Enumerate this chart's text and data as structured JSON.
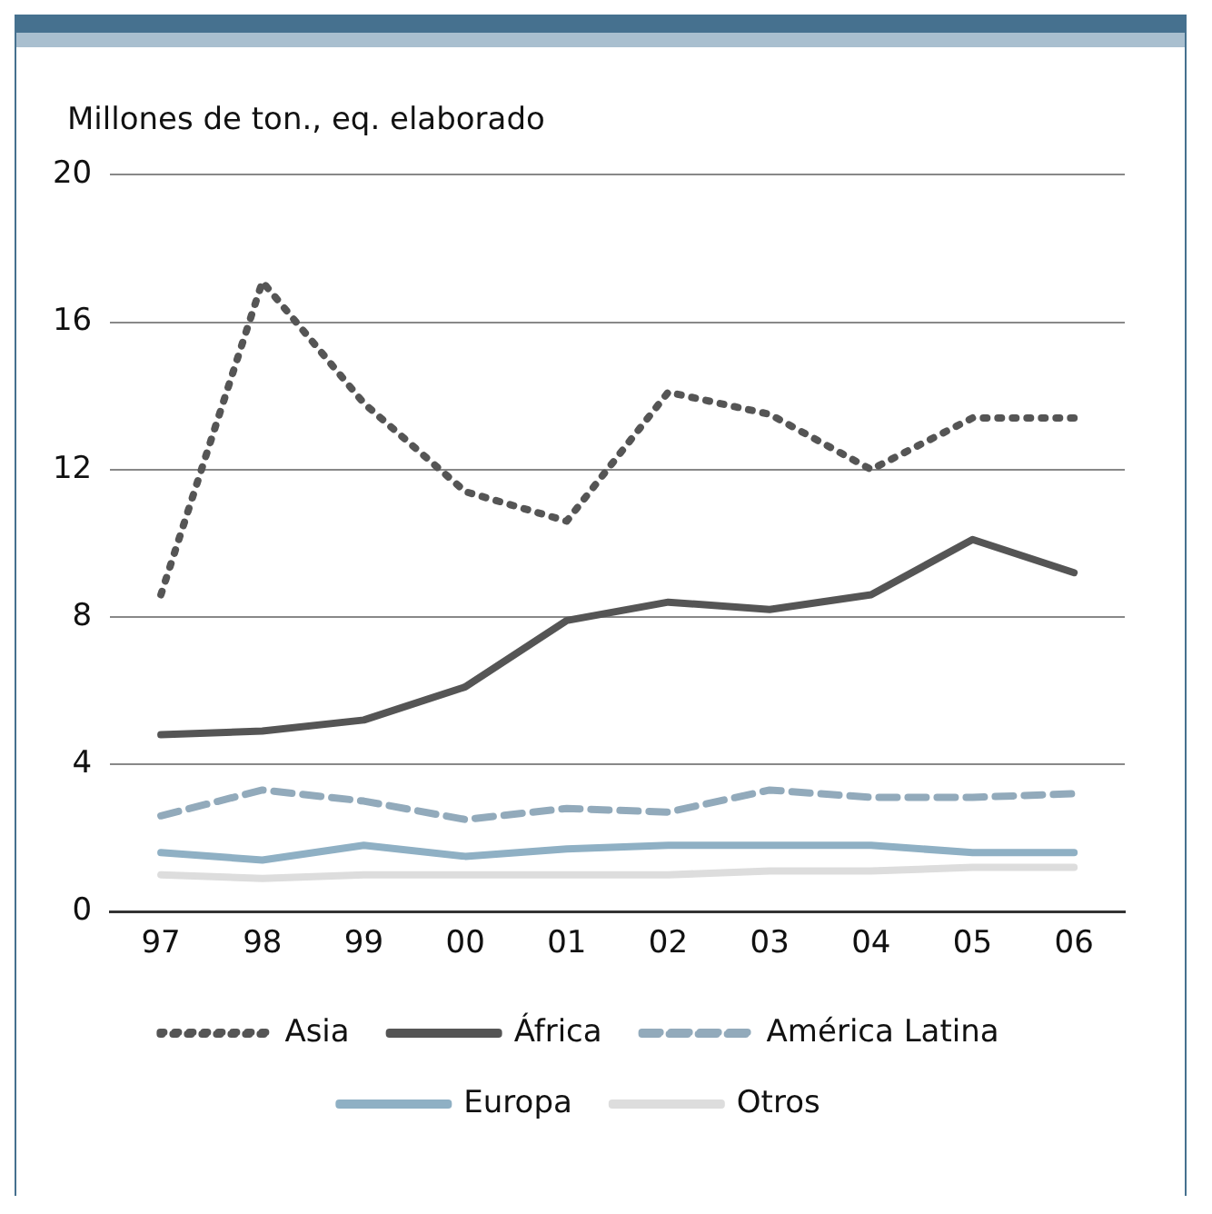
{
  "chart_data": {
    "type": "line",
    "ylabel": "Millones de ton., eq. elaborado",
    "categories": [
      "97",
      "98",
      "99",
      "00",
      "01",
      "02",
      "03",
      "04",
      "05",
      "06"
    ],
    "series": [
      {
        "name": "Asia",
        "color": "#555555",
        "line_style": "dotted",
        "values": [
          8.6,
          17.1,
          13.8,
          11.4,
          10.6,
          14.1,
          13.5,
          12.0,
          13.4,
          13.4
        ]
      },
      {
        "name": "África",
        "color": "#555555",
        "line_style": "solid",
        "values": [
          4.8,
          4.9,
          5.2,
          6.1,
          7.9,
          8.4,
          8.2,
          8.6,
          10.1,
          9.2
        ]
      },
      {
        "name": "América Latina",
        "color": "#92aabb",
        "line_style": "dashed",
        "values": [
          2.6,
          3.3,
          3.0,
          2.5,
          2.8,
          2.7,
          3.3,
          3.1,
          3.1,
          3.2
        ]
      },
      {
        "name": "Europa",
        "color": "#8fb0c4",
        "line_style": "solid",
        "values": [
          1.6,
          1.4,
          1.8,
          1.5,
          1.7,
          1.8,
          1.8,
          1.8,
          1.6,
          1.6
        ]
      },
      {
        "name": "Otros",
        "color": "#dddddd",
        "line_style": "solid",
        "values": [
          1.0,
          0.9,
          1.0,
          1.0,
          1.0,
          1.0,
          1.1,
          1.1,
          1.2,
          1.2
        ]
      }
    ],
    "ylim": [
      0,
      20
    ],
    "yticks": [
      0,
      4,
      8,
      12,
      16,
      20
    ],
    "grid": "y",
    "legend": "bottom",
    "marker": "none"
  }
}
